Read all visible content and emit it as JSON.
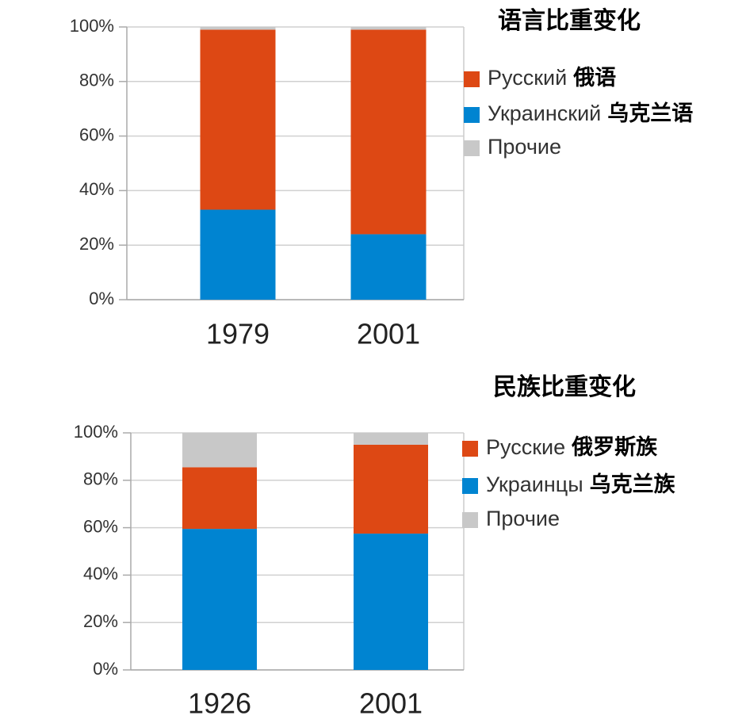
{
  "chart_data": [
    {
      "type": "stacked-bar",
      "title": "语言比重变化",
      "categories": [
        "1979",
        "2001"
      ],
      "series": [
        {
          "name": "Украинский",
          "translation": "乌克兰语",
          "color": "#0084d1",
          "values": [
            33,
            24
          ]
        },
        {
          "name": "Русский",
          "translation": "俄语",
          "color": "#dd4814",
          "values": [
            66,
            75
          ]
        },
        {
          "name": "Прочие",
          "color": "#c8c8c8",
          "values": [
            1,
            1
          ]
        }
      ],
      "legend_order": [
        1,
        0,
        2
      ],
      "ylim": [
        0,
        100
      ],
      "yticks": [
        {
          "value": 0,
          "label": "0%"
        },
        {
          "value": 20,
          "label": "20%"
        },
        {
          "value": 40,
          "label": "40%"
        },
        {
          "value": 60,
          "label": "60%"
        },
        {
          "value": 80,
          "label": "80%"
        },
        {
          "value": 100,
          "label": "100%"
        }
      ],
      "grid": true
    },
    {
      "type": "stacked-bar",
      "title": "民族比重变化",
      "categories": [
        "1926",
        "2001"
      ],
      "series": [
        {
          "name": "Украинцы",
          "translation": "乌克兰族",
          "color": "#0084d1",
          "values": [
            59.5,
            57.5
          ]
        },
        {
          "name": "Русские",
          "translation": "俄罗斯族",
          "color": "#dd4814",
          "values": [
            26,
            37.5
          ]
        },
        {
          "name": "Прочие",
          "color": "#c8c8c8",
          "values": [
            14.5,
            5
          ]
        }
      ],
      "legend_order": [
        1,
        0,
        2
      ],
      "ylim": [
        0,
        100
      ],
      "yticks": [
        {
          "value": 0,
          "label": "0%"
        },
        {
          "value": 20,
          "label": "20%"
        },
        {
          "value": 40,
          "label": "40%"
        },
        {
          "value": 60,
          "label": "60%"
        },
        {
          "value": 80,
          "label": "80%"
        },
        {
          "value": 100,
          "label": "100%"
        }
      ],
      "grid": true
    }
  ]
}
